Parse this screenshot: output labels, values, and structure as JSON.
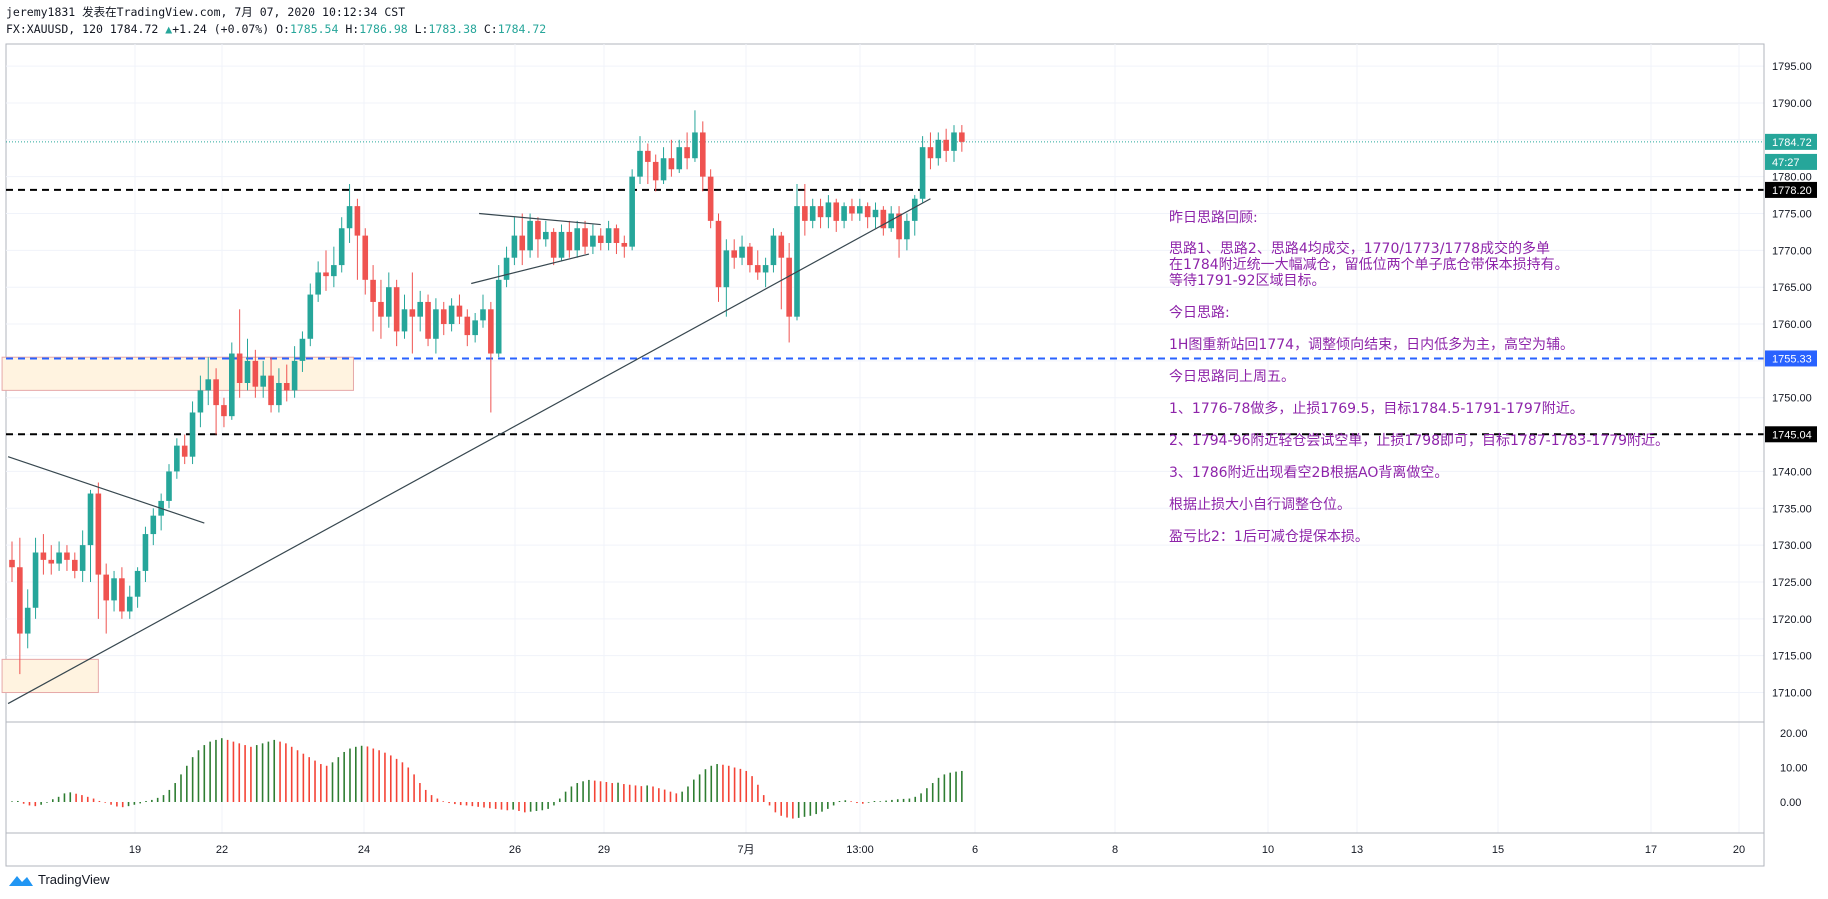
{
  "header": {
    "line1": "jeremy1831 发表在TradingView.com, 7月 07, 2020 10:12:34 CST",
    "symbol": "FX:XAUUSD, 120 1784.72",
    "change": "+1.24 (+0.07%)",
    "o_label": "O:",
    "o_value": "1785.54",
    "h_label": "H:",
    "h_value": "1786.98",
    "l_label": "L:",
    "l_value": "1783.38",
    "c_label": "C:",
    "c_value": "1784.72"
  },
  "brand": {
    "name": "TradingView"
  },
  "chart_data": {
    "type": "candlestick",
    "symbol": "FX:XAUUSD",
    "interval": "120",
    "ylim": [
      1706,
      1798
    ],
    "y_ticks": [
      1710,
      1715,
      1720,
      1725,
      1730,
      1735,
      1740,
      1745,
      1750,
      1755,
      1760,
      1765,
      1770,
      1775,
      1780,
      1785,
      1790,
      1795
    ],
    "x_tick_labels": [
      "19",
      "22",
      "24",
      "26",
      "29",
      "7月",
      "13:00",
      "6",
      "8",
      "10",
      "13",
      "15",
      "17",
      "20"
    ],
    "price_labels": [
      {
        "value": 1784.72,
        "text": "1784.72",
        "color": "#26a69a"
      },
      {
        "value": 1782.0,
        "text": "47:27",
        "color": "#26a69a"
      },
      {
        "value": 1778.2,
        "text": "1778.20",
        "color": "#000000"
      },
      {
        "value": 1755.33,
        "text": "1755.33",
        "color": "#2962ff"
      },
      {
        "value": 1745.04,
        "text": "1745.04",
        "color": "#000000"
      }
    ],
    "horizontal_lines": [
      {
        "value": 1778.2,
        "color": "#000000",
        "style": "dashed"
      },
      {
        "value": 1755.33,
        "color": "#2962ff",
        "style": "dashed"
      },
      {
        "value": 1745.04,
        "color": "#000000",
        "style": "dashed"
      },
      {
        "value": 1784.72,
        "color": "#26a69a",
        "style": "dotted"
      }
    ],
    "candles": [
      [
        1728.0,
        1727.0,
        1730.5,
        1725.0
      ],
      [
        1727.0,
        1718.0,
        1731.0,
        1712.5
      ],
      [
        1718.0,
        1721.5,
        1724.0,
        1716.0
      ],
      [
        1721.5,
        1729.0,
        1731.0,
        1720.0
      ],
      [
        1729.0,
        1728.0,
        1731.5,
        1726.0
      ],
      [
        1728.0,
        1727.5,
        1730.0,
        1726.0
      ],
      [
        1727.5,
        1729.0,
        1730.5,
        1726.5
      ],
      [
        1729.0,
        1728.0,
        1730.0,
        1726.5
      ],
      [
        1728.0,
        1726.5,
        1729.0,
        1725.5
      ],
      [
        1726.5,
        1730.0,
        1732.0,
        1725.0
      ],
      [
        1730.0,
        1737.0,
        1737.5,
        1725.0
      ],
      [
        1737.0,
        1726.0,
        1738.5,
        1720.0
      ],
      [
        1726.0,
        1722.5,
        1727.5,
        1718.0
      ],
      [
        1722.5,
        1725.5,
        1726.5,
        1721.0
      ],
      [
        1725.5,
        1721.0,
        1727.0,
        1720.0
      ],
      [
        1721.0,
        1723.0,
        1724.5,
        1720.0
      ],
      [
        1723.0,
        1726.5,
        1727.0,
        1721.5
      ],
      [
        1726.5,
        1731.5,
        1732.5,
        1725.0
      ],
      [
        1731.5,
        1734.0,
        1735.0,
        1730.0
      ],
      [
        1734.0,
        1736.0,
        1737.0,
        1732.0
      ],
      [
        1736.0,
        1740.0,
        1741.0,
        1735.0
      ],
      [
        1740.0,
        1743.5,
        1744.5,
        1739.0
      ],
      [
        1743.5,
        1742.0,
        1745.0,
        1741.0
      ],
      [
        1742.0,
        1748.0,
        1749.5,
        1741.0
      ],
      [
        1748.0,
        1751.0,
        1753.0,
        1746.0
      ],
      [
        1751.0,
        1752.5,
        1755.5,
        1749.0
      ],
      [
        1752.5,
        1749.0,
        1754.0,
        1745.0
      ],
      [
        1749.0,
        1747.5,
        1750.0,
        1746.0
      ],
      [
        1747.5,
        1756.0,
        1757.5,
        1747.0
      ],
      [
        1756.0,
        1752.0,
        1762.0,
        1750.0
      ],
      [
        1752.0,
        1755.0,
        1758.0,
        1751.0
      ],
      [
        1755.0,
        1751.5,
        1756.5,
        1750.0
      ],
      [
        1751.5,
        1753.0,
        1755.0,
        1750.0
      ],
      [
        1753.0,
        1749.0,
        1755.5,
        1748.0
      ],
      [
        1749.0,
        1752.0,
        1754.0,
        1748.0
      ],
      [
        1752.0,
        1751.0,
        1754.5,
        1749.5
      ],
      [
        1751.0,
        1755.0,
        1757.0,
        1750.0
      ],
      [
        1755.0,
        1758.0,
        1759.0,
        1753.5
      ],
      [
        1758.0,
        1764.0,
        1765.5,
        1757.0
      ],
      [
        1764.0,
        1767.0,
        1768.5,
        1763.0
      ],
      [
        1767.0,
        1766.5,
        1770.0,
        1764.5
      ],
      [
        1766.5,
        1768.0,
        1770.5,
        1765.0
      ],
      [
        1768.0,
        1773.0,
        1774.5,
        1767.0
      ],
      [
        1773.0,
        1776.0,
        1779.0,
        1771.0
      ],
      [
        1776.0,
        1772.0,
        1777.0,
        1766.0
      ],
      [
        1772.0,
        1766.0,
        1773.0,
        1764.0
      ],
      [
        1766.0,
        1763.0,
        1768.0,
        1759.0
      ],
      [
        1763.0,
        1761.0,
        1766.0,
        1758.0
      ],
      [
        1761.0,
        1765.0,
        1767.0,
        1759.5
      ],
      [
        1765.0,
        1759.0,
        1766.0,
        1757.0
      ],
      [
        1759.0,
        1762.0,
        1764.0,
        1758.0
      ],
      [
        1762.0,
        1761.0,
        1767.0,
        1756.0
      ],
      [
        1761.0,
        1763.0,
        1764.5,
        1759.0
      ],
      [
        1763.0,
        1758.0,
        1764.0,
        1757.0
      ],
      [
        1758.0,
        1762.0,
        1763.5,
        1756.0
      ],
      [
        1762.0,
        1760.0,
        1763.0,
        1758.5
      ],
      [
        1760.0,
        1762.5,
        1763.5,
        1759.0
      ],
      [
        1762.5,
        1761.0,
        1764.0,
        1760.0
      ],
      [
        1761.0,
        1758.5,
        1762.0,
        1757.0
      ],
      [
        1758.5,
        1760.5,
        1761.5,
        1757.5
      ],
      [
        1760.5,
        1762.0,
        1764.0,
        1759.5
      ],
      [
        1762.0,
        1756.0,
        1763.0,
        1748.0
      ],
      [
        1756.0,
        1766.0,
        1768.0,
        1755.5
      ],
      [
        1766.0,
        1769.0,
        1770.5,
        1765.0
      ],
      [
        1769.0,
        1772.0,
        1774.5,
        1768.0
      ],
      [
        1772.0,
        1770.0,
        1775.0,
        1768.0
      ],
      [
        1770.0,
        1774.0,
        1775.0,
        1769.0
      ],
      [
        1774.0,
        1771.5,
        1774.5,
        1769.0
      ],
      [
        1771.5,
        1772.5,
        1774.0,
        1770.5
      ],
      [
        1772.5,
        1769.0,
        1773.0,
        1768.0
      ],
      [
        1769.0,
        1772.5,
        1773.5,
        1768.5
      ],
      [
        1772.5,
        1770.0,
        1774.0,
        1769.0
      ],
      [
        1770.0,
        1773.0,
        1774.0,
        1769.0
      ],
      [
        1773.0,
        1770.5,
        1774.0,
        1769.5
      ],
      [
        1770.5,
        1772.0,
        1773.5,
        1769.5
      ],
      [
        1772.0,
        1771.0,
        1773.0,
        1770.0
      ],
      [
        1771.0,
        1773.0,
        1774.0,
        1770.0
      ],
      [
        1773.0,
        1771.0,
        1773.5,
        1769.5
      ],
      [
        1771.0,
        1770.5,
        1772.0,
        1769.0
      ],
      [
        1770.5,
        1780.0,
        1781.0,
        1770.0
      ],
      [
        1780.0,
        1783.5,
        1785.5,
        1779.0
      ],
      [
        1783.5,
        1782.0,
        1784.5,
        1779.0
      ],
      [
        1782.0,
        1779.5,
        1783.0,
        1778.0
      ],
      [
        1779.5,
        1782.5,
        1784.0,
        1779.0
      ],
      [
        1782.5,
        1781.0,
        1785.0,
        1780.0
      ],
      [
        1781.0,
        1784.0,
        1785.0,
        1780.5
      ],
      [
        1784.0,
        1782.5,
        1786.0,
        1781.0
      ],
      [
        1782.5,
        1786.0,
        1789.0,
        1782.0
      ],
      [
        1786.0,
        1780.0,
        1787.5,
        1778.0
      ],
      [
        1780.0,
        1774.0,
        1781.0,
        1773.0
      ],
      [
        1774.0,
        1765.0,
        1775.0,
        1763.0
      ],
      [
        1765.0,
        1770.0,
        1771.5,
        1761.0
      ],
      [
        1770.0,
        1769.0,
        1771.5,
        1767.5
      ],
      [
        1769.0,
        1770.5,
        1772.0,
        1768.0
      ],
      [
        1770.5,
        1768.0,
        1771.0,
        1767.0
      ],
      [
        1768.0,
        1767.0,
        1770.0,
        1766.0
      ],
      [
        1767.0,
        1768.0,
        1769.0,
        1765.0
      ],
      [
        1768.0,
        1772.0,
        1773.0,
        1767.0
      ],
      [
        1772.0,
        1769.0,
        1772.5,
        1762.0
      ],
      [
        1769.0,
        1761.0,
        1771.0,
        1757.5
      ],
      [
        1761.0,
        1776.0,
        1779.0,
        1760.5
      ],
      [
        1776.0,
        1774.0,
        1779.0,
        1772.0
      ],
      [
        1774.0,
        1776.0,
        1777.0,
        1773.0
      ],
      [
        1776.0,
        1774.5,
        1777.0,
        1773.0
      ],
      [
        1774.5,
        1776.5,
        1777.5,
        1773.0
      ],
      [
        1776.5,
        1774.0,
        1777.0,
        1772.5
      ],
      [
        1774.0,
        1776.0,
        1776.5,
        1773.0
      ],
      [
        1776.0,
        1775.0,
        1777.0,
        1774.0
      ],
      [
        1775.0,
        1776.0,
        1777.0,
        1774.0
      ],
      [
        1776.0,
        1774.5,
        1776.5,
        1773.0
      ],
      [
        1774.5,
        1775.5,
        1776.5,
        1773.0
      ],
      [
        1775.5,
        1773.0,
        1776.0,
        1772.0
      ],
      [
        1773.0,
        1775.0,
        1776.0,
        1772.5
      ],
      [
        1775.0,
        1771.5,
        1776.0,
        1769.0
      ],
      [
        1771.5,
        1774.0,
        1775.0,
        1770.0
      ],
      [
        1774.0,
        1777.0,
        1777.5,
        1772.0
      ],
      [
        1777.0,
        1784.0,
        1785.5,
        1776.5
      ],
      [
        1784.0,
        1782.5,
        1786.0,
        1781.0
      ],
      [
        1782.5,
        1785.0,
        1786.0,
        1781.5
      ],
      [
        1785.0,
        1783.5,
        1786.5,
        1782.0
      ],
      [
        1783.5,
        1786.0,
        1787.0,
        1782.0
      ],
      [
        1786.0,
        1784.72,
        1787.0,
        1783.38
      ]
    ],
    "trendlines": [
      {
        "from": {
          "i": -0.5,
          "v": 1708.5
        },
        "to": {
          "i": 117,
          "v": 1777.0
        }
      },
      {
        "from": {
          "i": -0.5,
          "v": 1742.0
        },
        "to": {
          "i": 24.5,
          "v": 1733.0
        }
      },
      {
        "from": {
          "i": 58.5,
          "v": 1765.5
        },
        "to": {
          "i": 73.5,
          "v": 1769.5
        }
      },
      {
        "from": {
          "i": 59.5,
          "v": 1775.0
        },
        "to": {
          "i": 75,
          "v": 1773.5
        }
      }
    ],
    "zones": [
      {
        "from_i": -0.5,
        "to_i": 43.5,
        "from_v": 1751.0,
        "to_v": 1755.5
      },
      {
        "from_i": -0.5,
        "to_i": 11.0,
        "from_v": 1710.0,
        "to_v": 1714.5
      }
    ],
    "ao": {
      "ylim": [
        -6,
        20
      ],
      "y_ticks": [
        0,
        10,
        20
      ],
      "y_tick_labels": [
        "0.00",
        "10.00",
        "20.00"
      ],
      "values": [
        0.2,
        0.3,
        -0.5,
        -1.0,
        -1.2,
        -0.8,
        -0.2,
        0.8,
        1.5,
        2.5,
        2.8,
        2.4,
        2.0,
        1.5,
        1.0,
        0.3,
        -0.2,
        -0.8,
        -1.3,
        -1.5,
        -1.2,
        -0.8,
        -0.4,
        0.0,
        0.6,
        1.2,
        2.0,
        3.5,
        5.5,
        8.0,
        10.5,
        13.0,
        15.0,
        16.5,
        17.5,
        18.0,
        18.5,
        18.0,
        17.5,
        17.0,
        16.5,
        16.0,
        16.5,
        17.0,
        17.5,
        18.0,
        17.5,
        17.0,
        16.0,
        15.0,
        14.0,
        13.0,
        12.0,
        11.0,
        10.5,
        11.5,
        13.0,
        14.5,
        15.5,
        16.0,
        16.3,
        16.1,
        15.5,
        15.0,
        14.3,
        13.5,
        12.5,
        11.5,
        10.0,
        8.0,
        5.5,
        3.5,
        2.0,
        1.0,
        0.2,
        -0.3,
        -0.6,
        -0.9,
        -1.0,
        -1.2,
        -1.4,
        -1.6,
        -1.8,
        -2.0,
        -2.2,
        -2.4,
        -2.2,
        -2.6,
        -3.0,
        -2.8,
        -2.6,
        -2.4,
        -2.0,
        -1.0,
        1.0,
        3.0,
        4.5,
        5.5,
        6.0,
        6.4,
        6.2,
        6.0,
        5.8,
        5.5,
        5.6,
        5.2,
        5.0,
        4.8,
        4.6,
        4.8,
        4.5,
        4.0,
        3.6,
        3.0,
        2.5,
        3.0,
        4.5,
        6.5,
        8.0,
        9.5,
        10.5,
        11.0,
        10.8,
        10.5,
        10.0,
        9.6,
        9.0,
        7.5,
        5.0,
        2.0,
        -1.0,
        -3.0,
        -4.0,
        -4.5,
        -4.8,
        -4.6,
        -4.3,
        -4.0,
        -3.5,
        -2.8,
        -2.0,
        -1.0,
        0.0,
        0.5,
        0.2,
        -0.3,
        -0.5,
        -0.2,
        0.0,
        0.2,
        0.4,
        0.6,
        0.8,
        0.9,
        1.0,
        1.5,
        2.5,
        4.0,
        5.5,
        7.0,
        8.0,
        8.5,
        8.8,
        9.0
      ]
    }
  },
  "notes": {
    "review_title": "昨日思路回顾:",
    "review_l1": "思路1、思路2、思路4均成交，1770/1773/1778成交的多单",
    "review_l2": "在1784附近统一大幅减仓，留低位两个单子底仓带保本损持有。",
    "review_l3": "等待1791-92区域目标。",
    "today_title": "今日思路:",
    "today_l1": "1H图重新站回1774，调整倾向结束，日内低多为主，高空为辅。",
    "today_l2": "今日思路同上周五。",
    "plan1": "1、1776-78做多，止损1769.5，目标1784.5-1791-1797附近。",
    "plan2": "2、1794-96附近轻仓尝试空单，止损1798即可，目标1787-1783-1779附近。",
    "plan3": "3、1786附近出现看空2B根据AO背离做空。",
    "tip1": "根据止损大小自行调整仓位。",
    "tip2": "盈亏比2：1后可减仓提保本损。"
  }
}
